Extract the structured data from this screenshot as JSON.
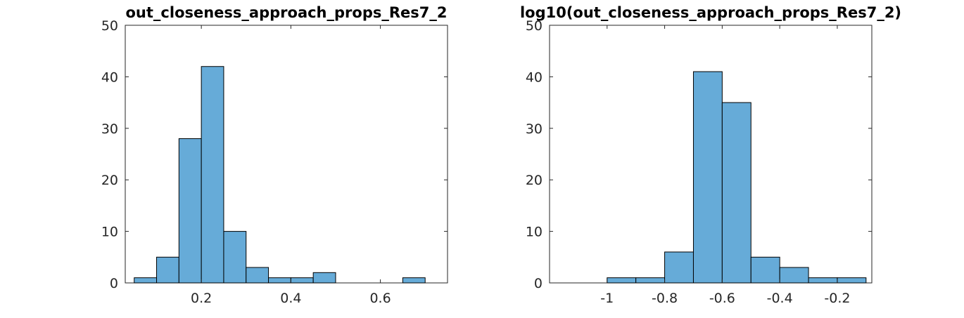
{
  "bar_color": "#66abd8",
  "chart_data": [
    {
      "type": "bar",
      "title": "out_closeness_approach_props_Res7_2",
      "xlabel": "",
      "ylabel": "",
      "bin_width": 0.05,
      "bin_edges": [
        0.05,
        0.1,
        0.15,
        0.2,
        0.25,
        0.3,
        0.35,
        0.4,
        0.45,
        0.5,
        0.55,
        0.6,
        0.65,
        0.7
      ],
      "values": [
        1,
        5,
        28,
        42,
        10,
        3,
        1,
        1,
        2,
        0,
        0,
        0,
        1
      ],
      "xlim": [
        0.03,
        0.75
      ],
      "ylim": [
        0,
        50
      ],
      "xticks": [
        0.2,
        0.4,
        0.6
      ],
      "xtick_labels": [
        "0.2",
        "0.4",
        "0.6"
      ],
      "yticks": [
        0,
        10,
        20,
        30,
        40,
        50
      ],
      "ytick_labels": [
        "0",
        "10",
        "20",
        "30",
        "40",
        "50"
      ],
      "grid": false,
      "legend": "none"
    },
    {
      "type": "bar",
      "title": "log10(out_closeness_approach_props_Res7_2)",
      "xlabel": "",
      "ylabel": "",
      "bin_width": 0.1,
      "bin_edges": [
        -1.1,
        -1.0,
        -0.9,
        -0.8,
        -0.7,
        -0.6,
        -0.5,
        -0.4,
        -0.3,
        -0.2,
        -0.1
      ],
      "values": [
        0,
        1,
        1,
        6,
        41,
        35,
        5,
        3,
        1,
        1
      ],
      "xlim": [
        -1.2,
        -0.08
      ],
      "ylim": [
        0,
        50
      ],
      "xticks": [
        -1,
        -0.8,
        -0.6,
        -0.4,
        -0.2
      ],
      "xtick_labels": [
        "-1",
        "-0.8",
        "-0.6",
        "-0.4",
        "-0.2"
      ],
      "yticks": [
        0,
        10,
        20,
        30,
        40,
        50
      ],
      "ytick_labels": [
        "0",
        "10",
        "20",
        "30",
        "40",
        "50"
      ],
      "grid": false,
      "legend": "none"
    }
  ]
}
